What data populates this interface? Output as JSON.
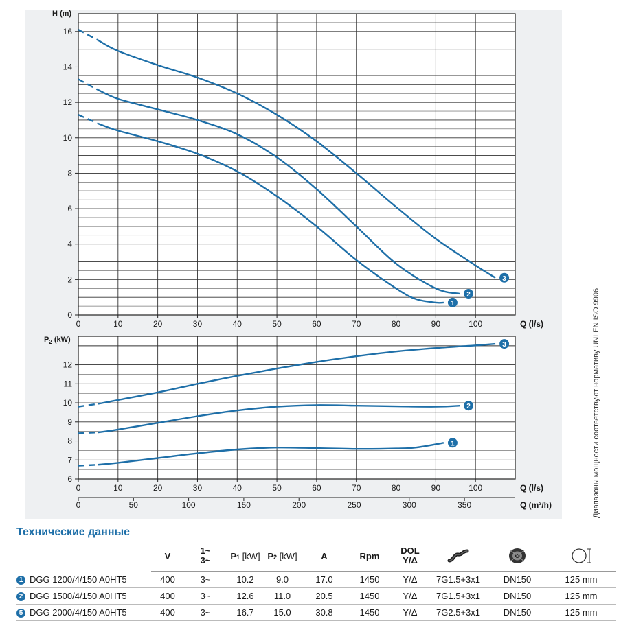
{
  "chart_data": [
    {
      "type": "line",
      "id": "head",
      "ylabel": "H (m)",
      "xlabel": "Q (l/s)",
      "xlim": [
        0,
        110
      ],
      "ylim": [
        0,
        17
      ],
      "x_ticks": [
        0,
        10,
        20,
        30,
        40,
        50,
        60,
        70,
        80,
        90,
        100
      ],
      "y_ticks": [
        0,
        2,
        4,
        6,
        8,
        10,
        12,
        14,
        16
      ],
      "grid": true,
      "series": [
        {
          "name": "1",
          "points": [
            [
              0,
              11.3
            ],
            [
              5,
              10.8
            ],
            [
              10,
              10.4
            ],
            [
              20,
              9.8
            ],
            [
              30,
              9.1
            ],
            [
              40,
              8.1
            ],
            [
              50,
              6.7
            ],
            [
              60,
              5.0
            ],
            [
              70,
              3.1
            ],
            [
              80,
              1.5
            ],
            [
              85,
              0.9
            ],
            [
              90,
              0.7
            ],
            [
              92,
              0.7
            ]
          ]
        },
        {
          "name": "2",
          "points": [
            [
              0,
              13.3
            ],
            [
              5,
              12.7
            ],
            [
              10,
              12.2
            ],
            [
              20,
              11.6
            ],
            [
              30,
              11.0
            ],
            [
              40,
              10.2
            ],
            [
              50,
              8.9
            ],
            [
              60,
              7.1
            ],
            [
              70,
              5.0
            ],
            [
              80,
              2.9
            ],
            [
              90,
              1.5
            ],
            [
              96,
              1.2
            ]
          ]
        },
        {
          "name": "3",
          "points": [
            [
              0,
              16.1
            ],
            [
              5,
              15.5
            ],
            [
              10,
              14.9
            ],
            [
              20,
              14.1
            ],
            [
              30,
              13.4
            ],
            [
              40,
              12.5
            ],
            [
              50,
              11.3
            ],
            [
              60,
              9.8
            ],
            [
              70,
              8.0
            ],
            [
              80,
              6.1
            ],
            [
              90,
              4.3
            ],
            [
              100,
              2.8
            ],
            [
              105,
              2.1
            ]
          ]
        }
      ]
    },
    {
      "type": "line",
      "id": "power",
      "ylabel": "P2 (kW)",
      "xlabel": "Q (l/s)",
      "xlabel2": "Q (m³/h)",
      "xlim": [
        0,
        110
      ],
      "ylim": [
        6,
        13.5
      ],
      "x_ticks": [
        0,
        10,
        20,
        30,
        40,
        50,
        60,
        70,
        80,
        90,
        100
      ],
      "x2_ticks": [
        0,
        50,
        100,
        150,
        200,
        250,
        300,
        350
      ],
      "y_ticks": [
        6,
        7,
        8,
        9,
        10,
        11,
        12
      ],
      "grid": true,
      "series": [
        {
          "name": "1",
          "points": [
            [
              0,
              6.7
            ],
            [
              5,
              6.75
            ],
            [
              10,
              6.85
            ],
            [
              20,
              7.1
            ],
            [
              30,
              7.35
            ],
            [
              40,
              7.55
            ],
            [
              50,
              7.65
            ],
            [
              60,
              7.62
            ],
            [
              70,
              7.58
            ],
            [
              80,
              7.6
            ],
            [
              85,
              7.65
            ],
            [
              92,
              7.9
            ]
          ]
        },
        {
          "name": "2",
          "points": [
            [
              0,
              8.4
            ],
            [
              5,
              8.45
            ],
            [
              10,
              8.6
            ],
            [
              20,
              8.95
            ],
            [
              30,
              9.3
            ],
            [
              40,
              9.6
            ],
            [
              50,
              9.8
            ],
            [
              60,
              9.88
            ],
            [
              70,
              9.85
            ],
            [
              80,
              9.82
            ],
            [
              90,
              9.8
            ],
            [
              96,
              9.85
            ]
          ]
        },
        {
          "name": "3",
          "points": [
            [
              0,
              9.8
            ],
            [
              5,
              9.95
            ],
            [
              10,
              10.15
            ],
            [
              20,
              10.55
            ],
            [
              30,
              11.0
            ],
            [
              40,
              11.42
            ],
            [
              50,
              11.8
            ],
            [
              60,
              12.15
            ],
            [
              70,
              12.45
            ],
            [
              80,
              12.7
            ],
            [
              90,
              12.88
            ],
            [
              100,
              13.02
            ],
            [
              105,
              13.1
            ]
          ]
        }
      ]
    }
  ],
  "side_note": "Диапазоны мощности соответствуют нормативу UNI EN ISO 9906",
  "tech": {
    "title": "Технические данные",
    "headers": {
      "V": "V",
      "phase_1": "1~",
      "phase_3": "3~",
      "p1_main": "P",
      "p1_sub": "1",
      "p1_unit": " [kW]",
      "p2_main": "P",
      "p2_sub": "2",
      "p2_unit": " [kW]",
      "A": "A",
      "rpm": "Rpm",
      "dol": "DOL",
      "ydelta": "Y/Δ"
    },
    "rows": [
      {
        "num": "1",
        "model": "DGG 1200/4/150 A0HT5",
        "v": "400",
        "phase": "3~",
        "p1": "10.2",
        "p2": "9.0",
        "a": "17.0",
        "rpm": "1450",
        "start": "Y/Δ",
        "cable": "7G1.5+3x1",
        "flange": "DN150",
        "diam": "125 mm"
      },
      {
        "num": "2",
        "model": "DGG 1500/4/150 A0HT5",
        "v": "400",
        "phase": "3~",
        "p1": "12.6",
        "p2": "11.0",
        "a": "20.5",
        "rpm": "1450",
        "start": "Y/Δ",
        "cable": "7G1.5+3x1",
        "flange": "DN150",
        "diam": "125 mm"
      },
      {
        "num": "5",
        "model": "DGG 2000/4/150 A0HT5",
        "v": "400",
        "phase": "3~",
        "p1": "16.7",
        "p2": "15.0",
        "a": "30.8",
        "rpm": "1450",
        "start": "Y/Δ",
        "cable": "7G2.5+3x1",
        "flange": "DN150",
        "diam": "125 mm"
      }
    ]
  },
  "colors": {
    "curve": "#1e6fa8",
    "panel": "#eef0f2",
    "grid": "#333333"
  }
}
